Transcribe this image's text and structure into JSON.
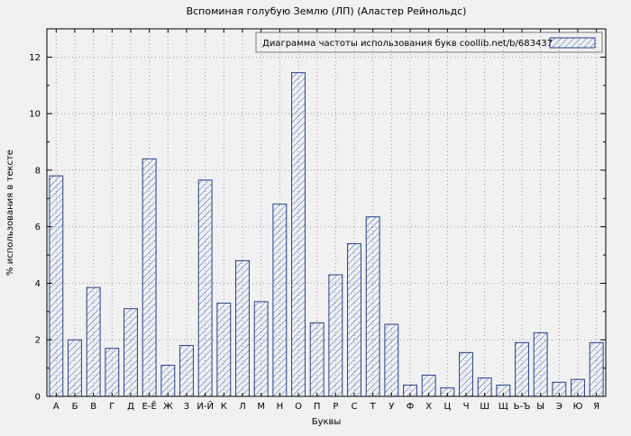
{
  "chart_data": {
    "type": "bar",
    "title": "Вспоминая голубую Землю (ЛП) (Аластер Рейнольдс)",
    "legend": "Диаграмма частоты использования букв coollib.net/b/683437",
    "xlabel": "Буквы",
    "ylabel": "% использования в тексте",
    "categories": [
      "А",
      "Б",
      "В",
      "Г",
      "Д",
      "Е-Ё",
      "Ж",
      "З",
      "И-Й",
      "К",
      "Л",
      "М",
      "Н",
      "О",
      "П",
      "Р",
      "С",
      "Т",
      "У",
      "Ф",
      "Х",
      "Ц",
      "Ч",
      "Ш",
      "Щ",
      "Ь-Ъ",
      "Ы",
      "Э",
      "Ю",
      "Я"
    ],
    "values": [
      7.8,
      2.0,
      3.85,
      1.7,
      3.1,
      8.4,
      1.1,
      1.8,
      7.65,
      3.3,
      4.8,
      3.35,
      6.8,
      11.45,
      2.6,
      4.3,
      5.4,
      6.35,
      2.55,
      0.4,
      0.75,
      0.3,
      1.55,
      0.65,
      0.4,
      1.9,
      2.25,
      0.5,
      0.6,
      1.9
    ],
    "ylim": [
      0,
      13
    ],
    "yticks": [
      0,
      2,
      4,
      6,
      8,
      10,
      12
    ],
    "grid": true,
    "legend_position": "top-right",
    "colors": {
      "bar_border": "#27408b",
      "hatch": "#3566c4",
      "grid": "#9a9a9a",
      "axis": "#000000",
      "legend_border": "#7a7a7a",
      "background": "#f1f1f1"
    }
  }
}
